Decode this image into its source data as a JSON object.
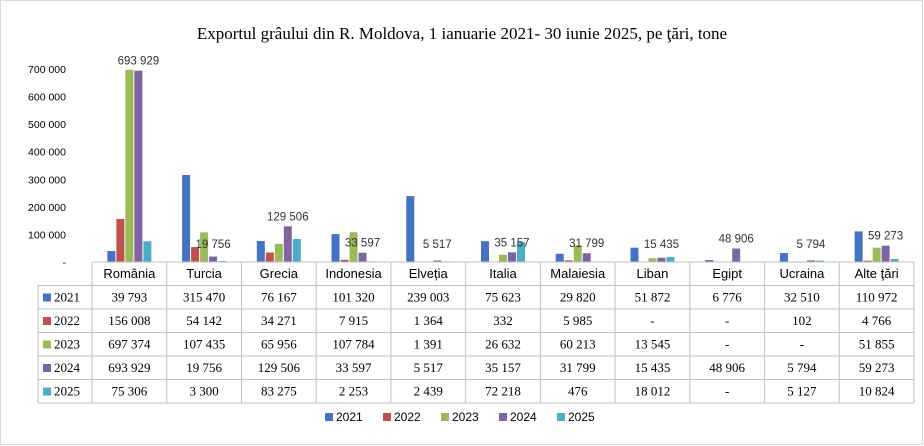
{
  "chart_data": {
    "type": "bar",
    "title": "Exportul grâului din R. Moldova, 1 ianuarie 2021- 30 iunie 2025, pe ţări, tone",
    "categories": [
      "România",
      "Turcia",
      "Grecia",
      "Indonesia",
      "Elveția",
      "Italia",
      "Malaiesia",
      "Liban",
      "Egipt",
      "Ucraina",
      "Alte ţări"
    ],
    "series": [
      {
        "name": "2021",
        "color": "#4472C4",
        "values": [
          39793,
          315470,
          76167,
          101320,
          239003,
          75623,
          29820,
          51872,
          6776,
          32510,
          110972
        ],
        "labels": [
          "39 793",
          "315 470",
          "76 167",
          "101 320",
          "239 003",
          "75 623",
          "29 820",
          "51 872",
          "6 776",
          "32 510",
          "110 972"
        ]
      },
      {
        "name": "2022",
        "color": "#C0504D",
        "values": [
          156008,
          54142,
          34271,
          7915,
          1364,
          332,
          5985,
          null,
          null,
          102,
          4766
        ],
        "labels": [
          "156 008",
          "54 142",
          "34 271",
          "7 915",
          "1 364",
          "332",
          "5 985",
          "-",
          "-",
          "102",
          "4 766"
        ]
      },
      {
        "name": "2023",
        "color": "#9BBB59",
        "values": [
          697374,
          107435,
          65956,
          107784,
          1391,
          26632,
          60213,
          13545,
          null,
          null,
          51855
        ],
        "labels": [
          "697 374",
          "107 435",
          "65 956",
          "107 784",
          "1 391",
          "26 632",
          "60 213",
          "13 545",
          "-",
          "-",
          "51 855"
        ]
      },
      {
        "name": "2024",
        "color": "#8064A2",
        "values": [
          693929,
          19756,
          129506,
          33597,
          5517,
          35157,
          31799,
          15435,
          48906,
          5794,
          59273
        ],
        "labels": [
          "693 929",
          "19 756",
          "129 506",
          "33 597",
          "5 517",
          "35 157",
          "31 799",
          "15 435",
          "48 906",
          "5 794",
          "59 273"
        ]
      },
      {
        "name": "2025",
        "color": "#4BACC6",
        "values": [
          75306,
          3300,
          83275,
          2253,
          2439,
          72218,
          476,
          18012,
          null,
          5127,
          10824
        ],
        "labels": [
          "75 306",
          "3 300",
          "83 275",
          "2 253",
          "2 439",
          "72 218",
          "476",
          "18 012",
          "-",
          "5 127",
          "10 824"
        ]
      }
    ],
    "data_labels_2024": [
      "693 929",
      "19 756",
      "129 506",
      "33 597",
      "5 517",
      "35 157",
      "31 799",
      "15 435",
      "48 906",
      "5 794",
      "59 273"
    ],
    "yticks": [
      0,
      100000,
      200000,
      300000,
      400000,
      500000,
      600000,
      700000
    ],
    "ytick_labels": [
      "-",
      "100 000",
      "200 000",
      "300 000",
      "400 000",
      "500 000",
      "600 000",
      "700 000"
    ],
    "ylim": [
      0,
      700000
    ],
    "grid": false,
    "legend_position": "bottom",
    "data_table": true
  }
}
